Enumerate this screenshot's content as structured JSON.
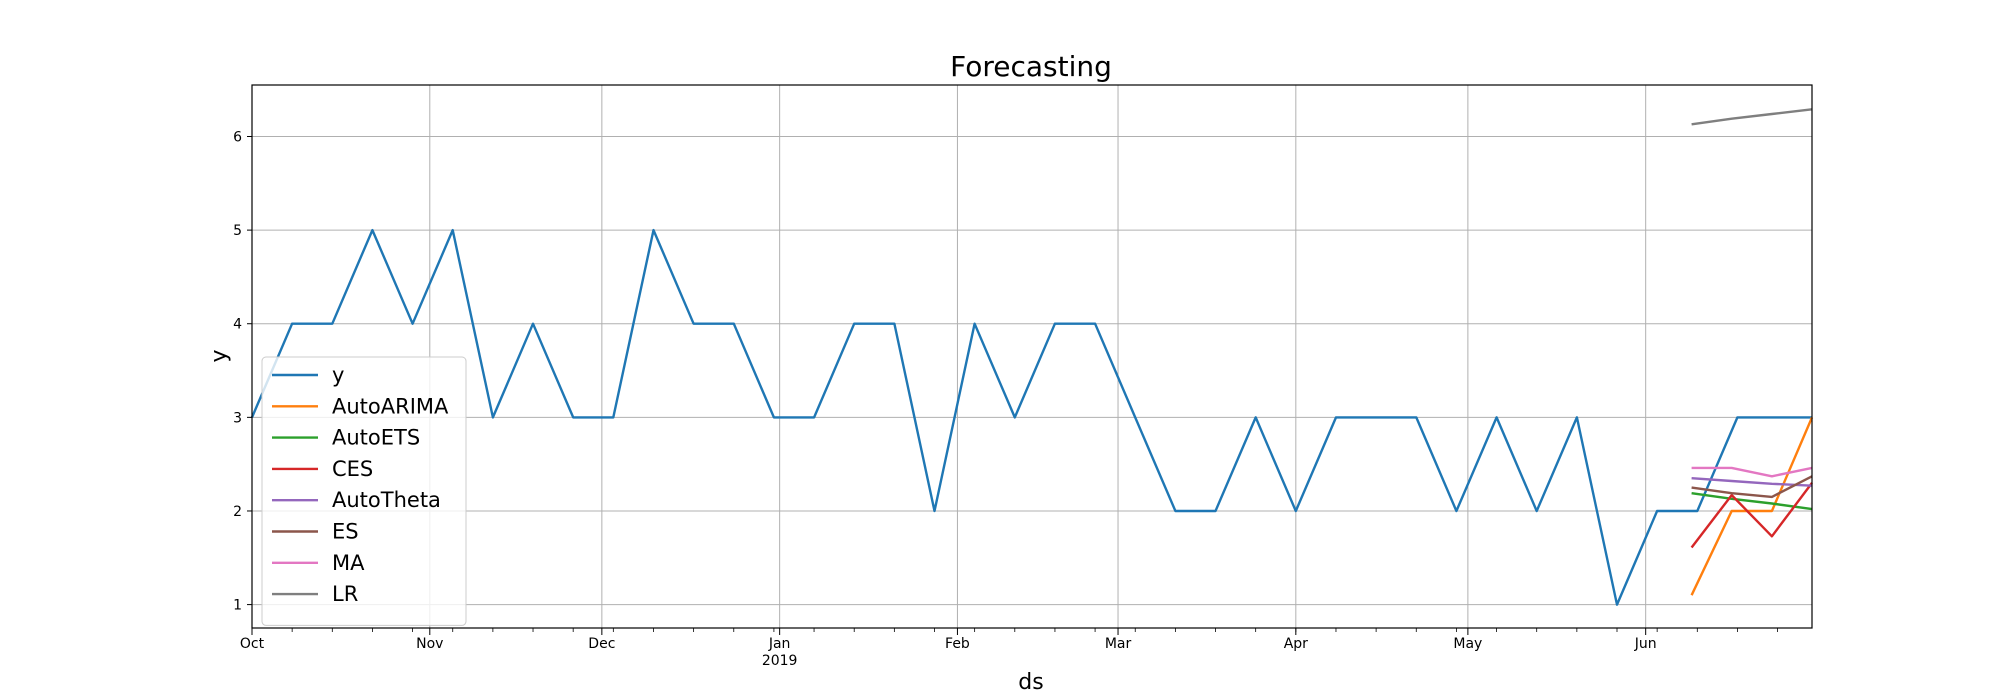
{
  "chart_data": {
    "type": "line",
    "title": "Forecasting",
    "xlabel": "ds",
    "ylabel": "y",
    "ylim": [
      0.75,
      6.55
    ],
    "xlim": [
      "2018-10-01",
      "2019-06-30"
    ],
    "grid": true,
    "legend_position": "lower-left",
    "yticks": [
      1,
      2,
      3,
      4,
      5,
      6
    ],
    "xticks_major": [
      {
        "date": "2018-10-01",
        "label": "Oct",
        "sublabel": ""
      },
      {
        "date": "2018-11-01",
        "label": "Nov",
        "sublabel": ""
      },
      {
        "date": "2018-12-01",
        "label": "Dec",
        "sublabel": ""
      },
      {
        "date": "2019-01-01",
        "label": "Jan",
        "sublabel": "2019"
      },
      {
        "date": "2019-02-01",
        "label": "Feb",
        "sublabel": ""
      },
      {
        "date": "2019-03-01",
        "label": "Mar",
        "sublabel": ""
      },
      {
        "date": "2019-04-01",
        "label": "Apr",
        "sublabel": ""
      },
      {
        "date": "2019-05-01",
        "label": "May",
        "sublabel": ""
      },
      {
        "date": "2019-06-01",
        "label": "Jun",
        "sublabel": ""
      }
    ],
    "xticks_minor": [
      "2018-10-08",
      "2018-10-15",
      "2018-10-22",
      "2018-10-29",
      "2018-11-05",
      "2018-11-12",
      "2018-11-19",
      "2018-11-26",
      "2018-12-03",
      "2018-12-10",
      "2018-12-17",
      "2018-12-24",
      "2018-12-31",
      "2019-01-07",
      "2019-01-14",
      "2019-01-21",
      "2019-01-28",
      "2019-02-04",
      "2019-02-11",
      "2019-02-18",
      "2019-02-25",
      "2019-03-04",
      "2019-03-11",
      "2019-03-18",
      "2019-03-25",
      "2019-04-01",
      "2019-04-08",
      "2019-04-15",
      "2019-04-22",
      "2019-04-29",
      "2019-05-06",
      "2019-05-13",
      "2019-05-20",
      "2019-05-27",
      "2019-06-03",
      "2019-06-10",
      "2019-06-17",
      "2019-06-24"
    ],
    "series": [
      {
        "name": "y",
        "color": "#1f77b4",
        "x": [
          "2018-10-01",
          "2018-10-08",
          "2018-10-15",
          "2018-10-22",
          "2018-10-29",
          "2018-11-05",
          "2018-11-12",
          "2018-11-19",
          "2018-11-26",
          "2018-12-03",
          "2018-12-10",
          "2018-12-17",
          "2018-12-24",
          "2018-12-31",
          "2019-01-07",
          "2019-01-14",
          "2019-01-21",
          "2019-01-28",
          "2019-02-04",
          "2019-02-11",
          "2019-02-18",
          "2019-02-25",
          "2019-03-04",
          "2019-03-11",
          "2019-03-18",
          "2019-03-25",
          "2019-04-01",
          "2019-04-08",
          "2019-04-15",
          "2019-04-22",
          "2019-04-29",
          "2019-05-06",
          "2019-05-13",
          "2019-05-20",
          "2019-05-27",
          "2019-06-03",
          "2019-06-10",
          "2019-06-17",
          "2019-06-24",
          "2019-06-30"
        ],
        "y": [
          3,
          4,
          4,
          5,
          4,
          5,
          3,
          4,
          3,
          3,
          5,
          4,
          4,
          3,
          3,
          4,
          4,
          2,
          4,
          3,
          4,
          4,
          3,
          2,
          2,
          3,
          2,
          3,
          3,
          3,
          2,
          3,
          2,
          3,
          1,
          2,
          2,
          3,
          3,
          3
        ]
      },
      {
        "name": "AutoARIMA",
        "color": "#ff7f0e",
        "x": [
          "2019-06-09",
          "2019-06-16",
          "2019-06-23",
          "2019-06-30"
        ],
        "y": [
          1.1,
          2.0,
          2.0,
          3.0
        ]
      },
      {
        "name": "AutoETS",
        "color": "#2ca02c",
        "x": [
          "2019-06-09",
          "2019-06-16",
          "2019-06-23",
          "2019-06-30"
        ],
        "y": [
          2.19,
          2.13,
          2.08,
          2.02
        ]
      },
      {
        "name": "CES",
        "color": "#d62728",
        "x": [
          "2019-06-09",
          "2019-06-16",
          "2019-06-23",
          "2019-06-30"
        ],
        "y": [
          1.61,
          2.17,
          1.73,
          2.3
        ]
      },
      {
        "name": "AutoTheta",
        "color": "#9467bd",
        "x": [
          "2019-06-09",
          "2019-06-16",
          "2019-06-23",
          "2019-06-30"
        ],
        "y": [
          2.35,
          2.32,
          2.29,
          2.27
        ]
      },
      {
        "name": "ES",
        "color": "#8c564b",
        "x": [
          "2019-06-09",
          "2019-06-16",
          "2019-06-23",
          "2019-06-30"
        ],
        "y": [
          2.25,
          2.19,
          2.15,
          2.37
        ]
      },
      {
        "name": "MA",
        "color": "#e377c2",
        "x": [
          "2019-06-09",
          "2019-06-16",
          "2019-06-23",
          "2019-06-30"
        ],
        "y": [
          2.46,
          2.46,
          2.37,
          2.46
        ]
      },
      {
        "name": "LR",
        "color": "#7f7f7f",
        "x": [
          "2019-06-09",
          "2019-06-16",
          "2019-06-23",
          "2019-06-30"
        ],
        "y": [
          6.13,
          6.19,
          6.24,
          6.29
        ]
      }
    ]
  }
}
